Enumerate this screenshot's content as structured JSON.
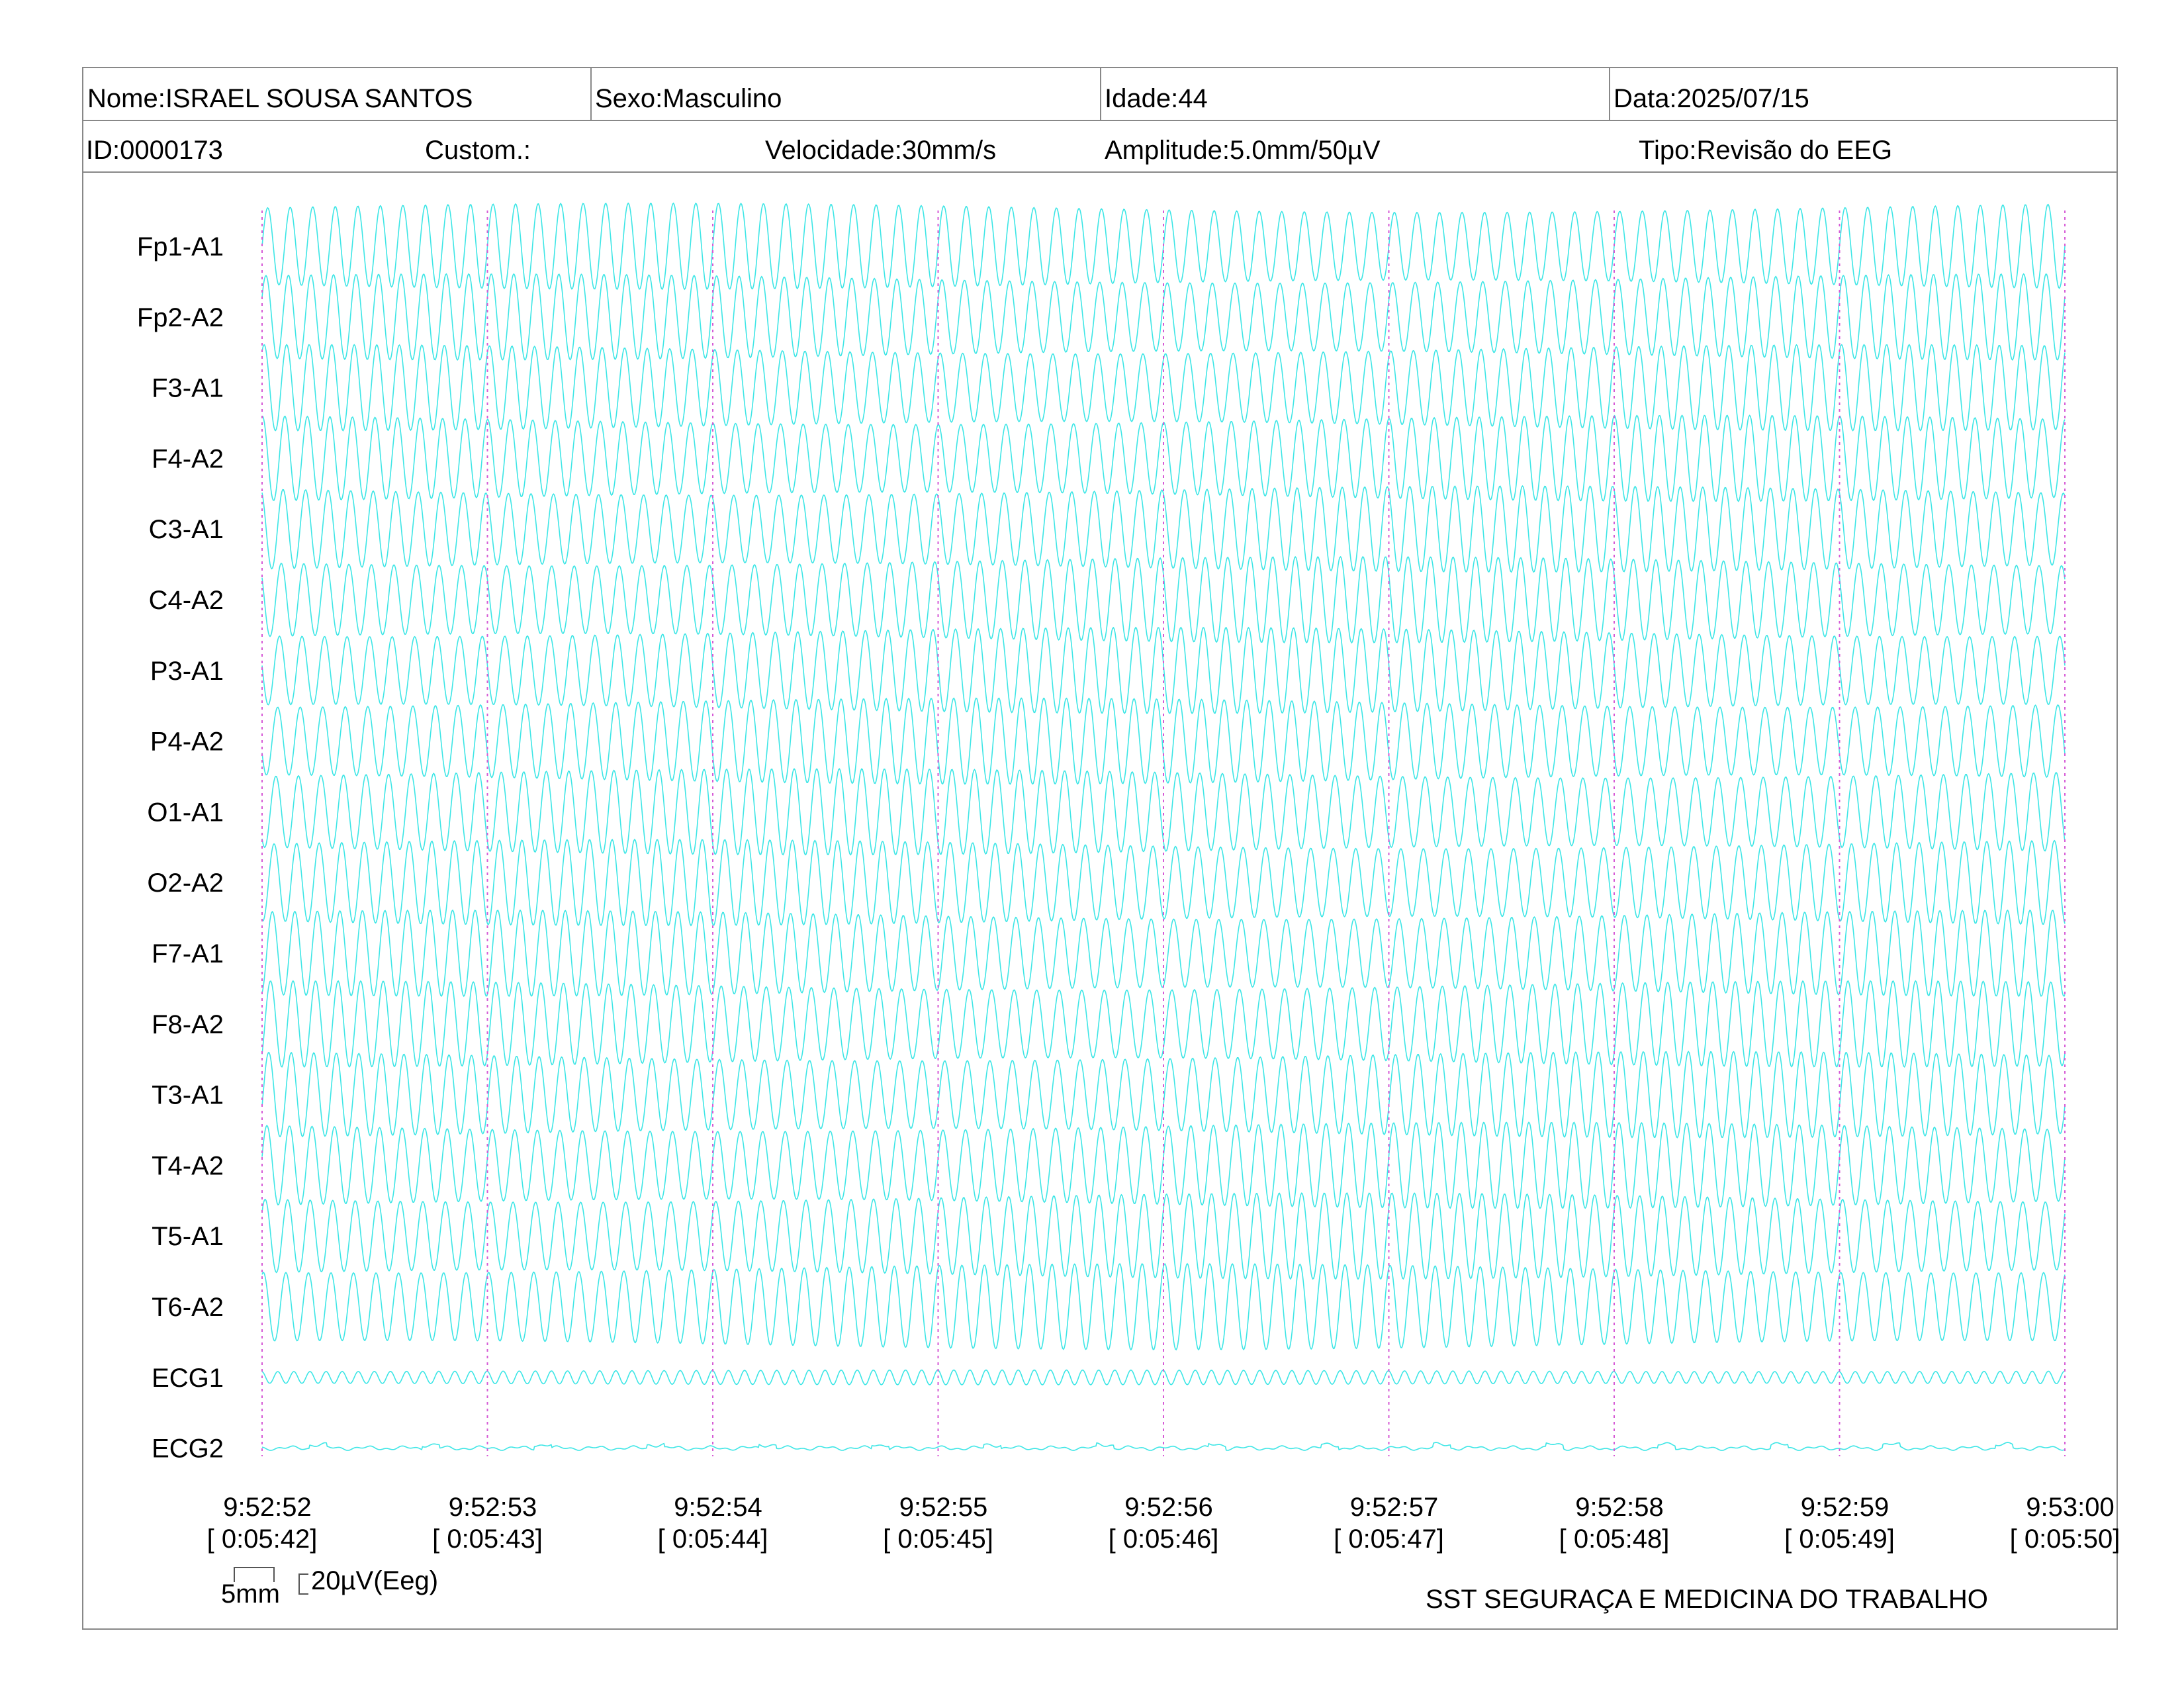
{
  "header": {
    "nome": "Nome:ISRAEL SOUSA SANTOS",
    "sexo": "Sexo:Masculino",
    "idade": "Idade:44",
    "data": "Data:2025/07/15",
    "id": "ID:0000173",
    "custom": "Custom.:",
    "velocidade": "Velocidade:30mm/s",
    "amplitude": "Amplitude:5.0mm/50µV",
    "tipo": "Tipo:Revisão do EEG"
  },
  "chart_data": {
    "type": "line",
    "title": "",
    "channels": [
      "Fp1-A1",
      "Fp2-A2",
      "F3-A1",
      "F4-A2",
      "C3-A1",
      "C4-A2",
      "P3-A1",
      "P4-A2",
      "O1-A1",
      "O2-A2",
      "F7-A1",
      "F8-A2",
      "T3-A1",
      "T4-A2",
      "T5-A1",
      "T6-A2",
      "ECG1",
      "ECG2"
    ],
    "time_ticks": [
      "9:52:52",
      "9:52:53",
      "9:52:54",
      "9:52:55",
      "9:52:56",
      "9:52:57",
      "9:52:58",
      "9:52:59",
      "9:53:00"
    ],
    "elapsed_ticks": [
      "[ 0:05:42]",
      "[ 0:05:43]",
      "[ 0:05:44]",
      "[ 0:05:45]",
      "[ 0:05:46]",
      "[ 0:05:47]",
      "[ 0:05:48]",
      "[ 0:05:49]",
      "[ 0:05:50]"
    ],
    "x_range_seconds": [
      0,
      8
    ],
    "eeg_oscillation_hz": 10,
    "ecg1_oscillation_hz": 14,
    "trace_color": "#3de6e6",
    "second_marker_color": "#d65ad6",
    "grid": false
  },
  "scale": {
    "time_label": "5mm",
    "amp_label": "20µV(Eeg)"
  },
  "footer": "SST SEGURAÇA E MEDICINA DO TRABALHO"
}
